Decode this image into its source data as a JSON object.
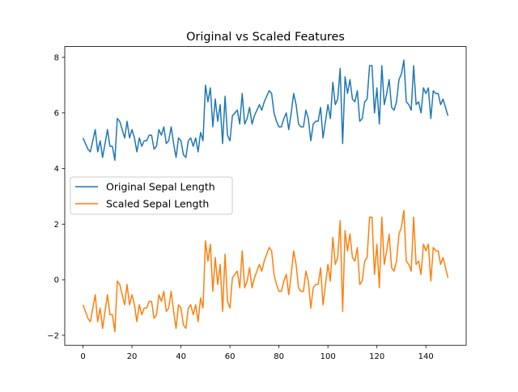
{
  "chart_data": {
    "type": "line",
    "title": "Original vs Scaled Features",
    "xlabel": "",
    "ylabel": "",
    "xlim": [
      -7.45,
      156.45
    ],
    "ylim": [
      -2.3585,
      8.3885
    ],
    "xticks": [
      0,
      20,
      40,
      60,
      80,
      100,
      120,
      140
    ],
    "yticks": [
      -2,
      0,
      2,
      4,
      6,
      8
    ],
    "legend_position": "center-left",
    "grid": false,
    "series": [
      {
        "name": "Original Sepal Length",
        "color": "#1f77b4",
        "values": [
          5.1,
          4.9,
          4.7,
          4.6,
          5.0,
          5.4,
          4.6,
          5.0,
          4.4,
          4.9,
          5.4,
          4.8,
          4.8,
          4.3,
          5.8,
          5.7,
          5.4,
          5.1,
          5.7,
          5.1,
          5.4,
          5.1,
          4.6,
          5.1,
          4.8,
          5.0,
          5.0,
          5.2,
          5.2,
          4.7,
          4.8,
          5.4,
          5.2,
          5.5,
          4.9,
          5.0,
          5.5,
          4.9,
          4.4,
          5.1,
          5.0,
          4.5,
          4.4,
          5.0,
          5.1,
          4.8,
          5.1,
          4.6,
          5.3,
          5.0,
          7.0,
          6.4,
          6.9,
          5.5,
          6.5,
          5.7,
          6.3,
          4.9,
          6.6,
          5.2,
          5.0,
          5.9,
          6.0,
          6.1,
          5.6,
          6.7,
          5.6,
          5.8,
          6.2,
          5.6,
          5.9,
          6.1,
          6.3,
          6.1,
          6.4,
          6.6,
          6.8,
          6.7,
          6.0,
          5.7,
          5.5,
          5.5,
          5.8,
          6.0,
          5.4,
          6.0,
          6.7,
          6.3,
          5.6,
          5.5,
          5.5,
          6.1,
          5.8,
          5.0,
          5.6,
          5.7,
          5.7,
          6.2,
          5.1,
          5.7,
          6.3,
          5.8,
          7.1,
          6.3,
          6.5,
          7.6,
          4.9,
          7.3,
          6.7,
          7.2,
          6.5,
          6.4,
          6.8,
          5.7,
          5.8,
          6.4,
          6.5,
          7.7,
          7.7,
          6.0,
          6.9,
          5.6,
          7.7,
          6.3,
          6.7,
          7.2,
          6.2,
          6.1,
          6.4,
          7.2,
          7.4,
          7.9,
          6.4,
          6.3,
          6.1,
          7.7,
          6.3,
          6.4,
          6.0,
          6.9,
          6.7,
          6.9,
          5.8,
          6.8,
          6.7,
          6.7,
          6.3,
          6.5,
          6.2,
          5.9
        ]
      },
      {
        "name": "Scaled Sepal Length",
        "color": "#ff7f0e",
        "values": [
          -0.9,
          -1.14,
          -1.39,
          -1.51,
          -1.02,
          -0.54,
          -1.51,
          -1.02,
          -1.75,
          -1.14,
          -0.54,
          -1.26,
          -1.26,
          -1.87,
          -0.05,
          -0.17,
          -0.54,
          -0.9,
          -0.17,
          -0.9,
          -0.54,
          -0.9,
          -1.51,
          -0.9,
          -1.26,
          -1.02,
          -1.02,
          -0.78,
          -0.78,
          -1.39,
          -1.26,
          -0.54,
          -0.78,
          -0.42,
          -1.14,
          -1.02,
          -0.42,
          -1.14,
          -1.75,
          -0.9,
          -1.02,
          -1.63,
          -1.75,
          -1.02,
          -0.9,
          -1.26,
          -0.9,
          -1.51,
          -0.66,
          -1.02,
          1.4,
          0.67,
          1.28,
          -0.42,
          0.8,
          -0.17,
          0.55,
          -1.14,
          0.92,
          -0.78,
          -1.02,
          0.07,
          0.19,
          0.31,
          -0.29,
          1.04,
          -0.29,
          -0.05,
          0.43,
          -0.29,
          0.07,
          0.31,
          0.55,
          0.31,
          0.67,
          0.92,
          1.16,
          1.04,
          0.19,
          -0.17,
          -0.42,
          -0.42,
          -0.05,
          0.19,
          -0.54,
          0.19,
          1.04,
          0.55,
          -0.29,
          -0.42,
          -0.42,
          0.31,
          -0.05,
          -1.02,
          -0.29,
          -0.17,
          -0.17,
          0.43,
          -0.9,
          -0.17,
          0.55,
          -0.05,
          1.52,
          0.55,
          0.8,
          2.13,
          -1.14,
          1.77,
          1.04,
          1.64,
          0.8,
          0.67,
          1.16,
          -0.17,
          -0.05,
          0.67,
          0.8,
          2.25,
          2.25,
          0.19,
          1.28,
          -0.29,
          2.25,
          0.55,
          1.04,
          1.64,
          0.43,
          0.31,
          0.67,
          1.64,
          1.89,
          2.49,
          0.67,
          0.55,
          0.31,
          2.25,
          0.55,
          0.67,
          0.19,
          1.28,
          1.04,
          1.28,
          -0.05,
          1.16,
          1.04,
          1.04,
          0.55,
          0.8,
          0.43,
          0.07
        ]
      }
    ]
  }
}
